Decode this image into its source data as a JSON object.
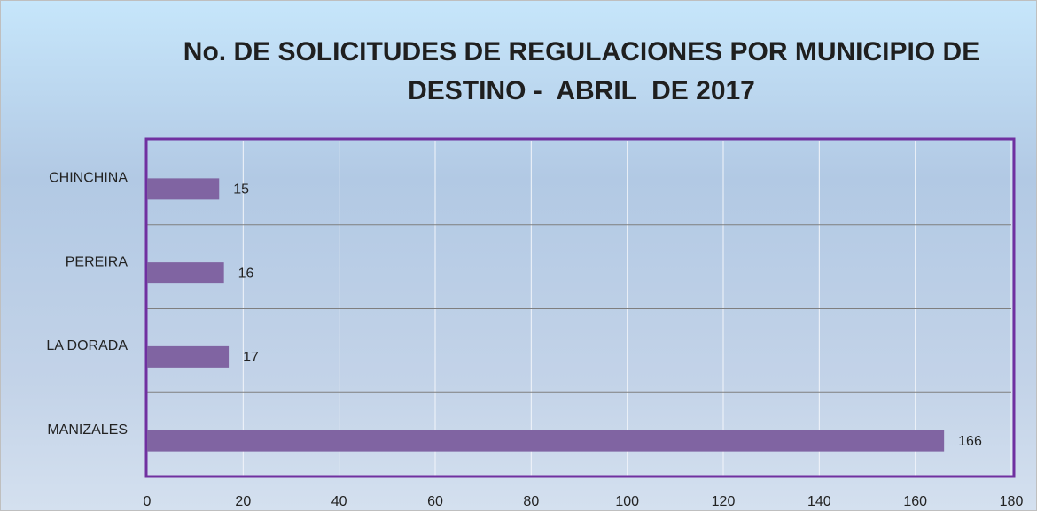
{
  "chart_data": {
    "type": "bar",
    "orientation": "horizontal",
    "title": "No. DE SOLICITUDES DE REGULACIONES POR MUNICIPIO DE\nDESTINO -  ABRIL  DE 2017",
    "categories": [
      "MANIZALES",
      "LA DORADA",
      "PEREIRA",
      "CHINCHINA"
    ],
    "values": [
      166,
      17,
      16,
      15
    ],
    "color": "#8064a2",
    "xlim": [
      0,
      180
    ],
    "xticks": [
      0,
      20,
      40,
      60,
      80,
      100,
      120,
      140,
      160,
      180
    ],
    "grid": true
  }
}
